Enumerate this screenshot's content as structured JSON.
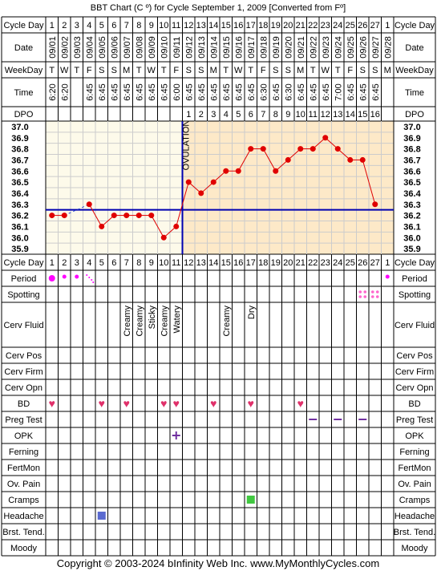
{
  "title": "BBT Chart (C º) for Cycle September 1, 2009  [Converted from Fº]",
  "footer": "Copyright © 2003-2024 bInfinity Web Inc.     www.MyMonthlyCycles.com",
  "row_labels": {
    "cycle_day": "Cycle Day",
    "date": "Date",
    "weekday": "WeekDay",
    "time": "Time",
    "dpo": "DPO",
    "period": "Period",
    "spotting": "Spotting",
    "cerv_fluid": "Cerv Fluid",
    "cerv_pos": "Cerv Pos",
    "cerv_firm": "Cerv Firm",
    "cerv_opn": "Cerv Opn",
    "bd": "BD",
    "preg_test": "Preg Test",
    "opk": "OPK",
    "ferning": "Ferning",
    "fertmon": "FertMon",
    "ov_pain": "Ov. Pain",
    "cramps": "Cramps",
    "headache": "Headache",
    "brst_tend": "Brst. Tend.",
    "moody": "Moody"
  },
  "columns": {
    "cycle_day": [
      "1",
      "2",
      "3",
      "4",
      "5",
      "6",
      "7",
      "8",
      "9",
      "10",
      "11",
      "12",
      "13",
      "14",
      "15",
      "16",
      "17",
      "18",
      "19",
      "20",
      "21",
      "22",
      "23",
      "24",
      "25",
      "26",
      "27",
      "1"
    ],
    "dates": [
      "09/01",
      "09/02",
      "09/03",
      "09/04",
      "09/05",
      "09/06",
      "09/07",
      "09/08",
      "09/09",
      "09/10",
      "09/11",
      "09/12",
      "09/13",
      "09/14",
      "09/15",
      "09/16",
      "09/17",
      "09/18",
      "09/19",
      "09/20",
      "09/21",
      "09/22",
      "09/23",
      "09/24",
      "09/25",
      "09/26",
      "09/27",
      "09/28"
    ],
    "weekdays": [
      "T",
      "W",
      "T",
      "F",
      "S",
      "S",
      "M",
      "T",
      "W",
      "T",
      "F",
      "S",
      "S",
      "M",
      "T",
      "W",
      "T",
      "F",
      "S",
      "S",
      "M",
      "T",
      "W",
      "T",
      "F",
      "S",
      "S",
      "M"
    ],
    "times": [
      "6:20",
      "6:20",
      "",
      "6:45",
      "6:45",
      "6:45",
      "6:45",
      "6:45",
      "6:45",
      "6:45",
      "6:00",
      "6:45",
      "6:45",
      "6:45",
      "6:45",
      "6:45",
      "6:45",
      "6:30",
      "6:45",
      "6:30",
      "6:45",
      "6:45",
      "6:45",
      "7:00",
      "6:45",
      "6:45",
      "6:45",
      ""
    ],
    "dpo": [
      "",
      "",
      "",
      "",
      "",
      "",
      "",
      "",
      "",
      "",
      "",
      "1",
      "2",
      "3",
      "4",
      "5",
      "6",
      "7",
      "8",
      "9",
      "10",
      "11",
      "12",
      "13",
      "14",
      "15",
      "16",
      ""
    ],
    "cerv_fluid": [
      "",
      "",
      "",
      "",
      "",
      "",
      "Creamy",
      "Creamy",
      "Sticky",
      "Creamy",
      "Watery",
      "",
      "",
      "",
      "Creamy",
      "",
      "Dry",
      "",
      "",
      "",
      "",
      "",
      "",
      "",
      "",
      "",
      "",
      ""
    ],
    "period": [
      "heavy",
      "medium",
      "medium",
      "spotting",
      "",
      "",
      "",
      "",
      "",
      "",
      "",
      "",
      "",
      "",
      "",
      "",
      "",
      "",
      "",
      "",
      "",
      "",
      "",
      "",
      "",
      "",
      "",
      "medium"
    ],
    "spotting_days": [
      26,
      27
    ],
    "bd_days": [
      1,
      5,
      7,
      10,
      11,
      14,
      17,
      21
    ],
    "preg_test_days": [
      22,
      24,
      26
    ],
    "opk_days": [
      11
    ],
    "cramps_days": [
      17
    ],
    "headache_days": [
      5
    ]
  },
  "overlay": {
    "ovulation_label": "OVULATION",
    "ovulation_day": 11,
    "coverline": 36.25
  },
  "chart_data": {
    "type": "line",
    "title": "BBT Chart (C º) for Cycle September 1, 2009  [Converted from Fº]",
    "x": [
      1,
      2,
      3,
      4,
      5,
      6,
      7,
      8,
      9,
      10,
      11,
      12,
      13,
      14,
      15,
      16,
      17,
      18,
      19,
      20,
      21,
      22,
      23,
      24,
      25,
      26,
      27
    ],
    "series": [
      {
        "values": [
          36.2,
          36.2,
          null,
          36.3,
          36.1,
          36.2,
          36.2,
          36.2,
          36.2,
          36.0,
          36.1,
          36.5,
          36.4,
          36.5,
          36.6,
          36.6,
          36.8,
          36.8,
          36.6,
          36.7,
          36.8,
          36.8,
          36.9,
          36.8,
          36.7,
          36.7,
          36.3
        ]
      }
    ],
    "y_ticks": [
      "37.0",
      "36.9",
      "36.8",
      "36.7",
      "36.6",
      "36.5",
      "36.4",
      "36.3",
      "36.2",
      "36.1",
      "36.0",
      "35.9"
    ],
    "ylim": [
      35.9,
      37.0
    ],
    "coverline": 36.25,
    "ovulation_day": 11,
    "colors": {
      "line": "#e00000",
      "coverline": "#0000b0",
      "follicular_bg": "#fdfaea",
      "luteal_bg": "#fde9c8",
      "ovulation": "#0000b0"
    }
  }
}
